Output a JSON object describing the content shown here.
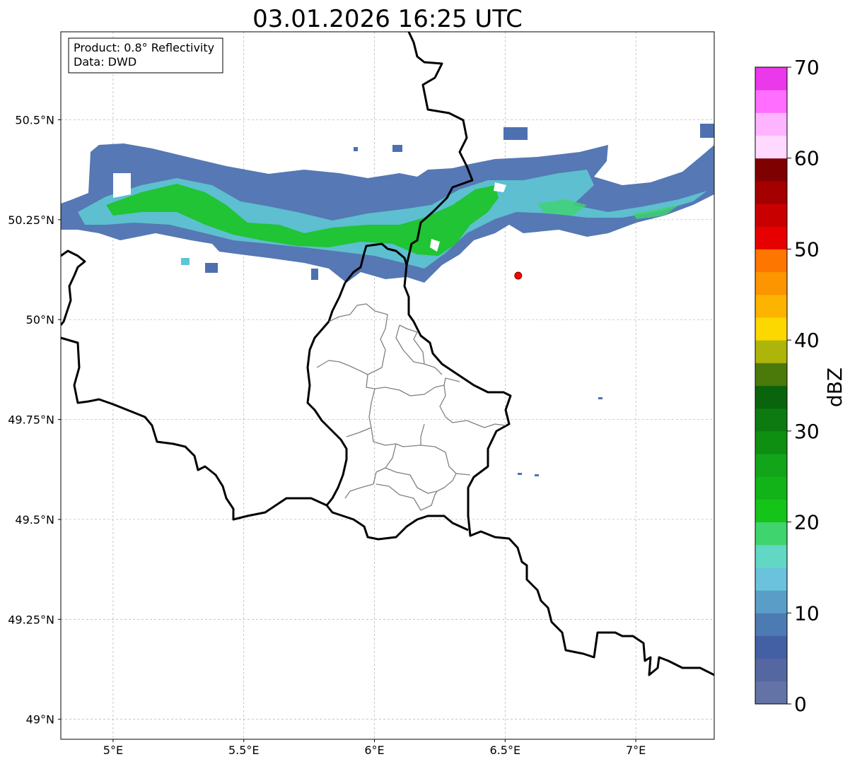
{
  "title": "03.01.2026 16:25 UTC",
  "info_box": {
    "product": "Product: 0.8° Reflectivity",
    "data": "Data: DWD"
  },
  "map": {
    "lon_range": [
      4.8,
      7.3
    ],
    "lat_range": [
      48.95,
      50.72
    ],
    "lon_ticks": [
      {
        "value": 5.0,
        "label": "5°E"
      },
      {
        "value": 5.5,
        "label": "5.5°E"
      },
      {
        "value": 6.0,
        "label": "6°E"
      },
      {
        "value": 6.5,
        "label": "6.5°E"
      },
      {
        "value": 7.0,
        "label": "7°E"
      }
    ],
    "lat_ticks": [
      {
        "value": 49.0,
        "label": "49°N"
      },
      {
        "value": 49.25,
        "label": "49.25°N"
      },
      {
        "value": 49.5,
        "label": "49.5°N"
      },
      {
        "value": 49.75,
        "label": "49.75°N"
      },
      {
        "value": 50.0,
        "label": "50°N"
      },
      {
        "value": 50.25,
        "label": "50.25°N"
      },
      {
        "value": 50.5,
        "label": "50.5°N"
      }
    ],
    "grid": true,
    "marker": {
      "lon": 6.55,
      "lat": 50.11,
      "color": "#ff0000"
    }
  },
  "colorbar": {
    "label": "dBZ",
    "min": 0,
    "max": 70,
    "step": 2.5,
    "ticks": [
      {
        "value": 0,
        "label": "0"
      },
      {
        "value": 10,
        "label": "10"
      },
      {
        "value": 20,
        "label": "20"
      },
      {
        "value": 30,
        "label": "30"
      },
      {
        "value": 40,
        "label": "40"
      },
      {
        "value": 50,
        "label": "50"
      },
      {
        "value": 60,
        "label": "60"
      },
      {
        "value": 70,
        "label": "70"
      }
    ],
    "colors": [
      "#6473a6",
      "#5467a0",
      "#4460a4",
      "#4c7bb4",
      "#5a9ec8",
      "#6bc2dc",
      "#62d7c4",
      "#3fd46e",
      "#15c419",
      "#12b318",
      "#12a419",
      "#0f8f12",
      "#0c7a10",
      "#0a640b",
      "#4b7a0a",
      "#adb40a",
      "#fcd800",
      "#fcb400",
      "#fc9500",
      "#fc7600",
      "#e60000",
      "#c80000",
      "#a40000",
      "#7e0000",
      "#ffd9ff",
      "#ffb4ff",
      "#ff6eff",
      "#ea38ea"
    ]
  }
}
